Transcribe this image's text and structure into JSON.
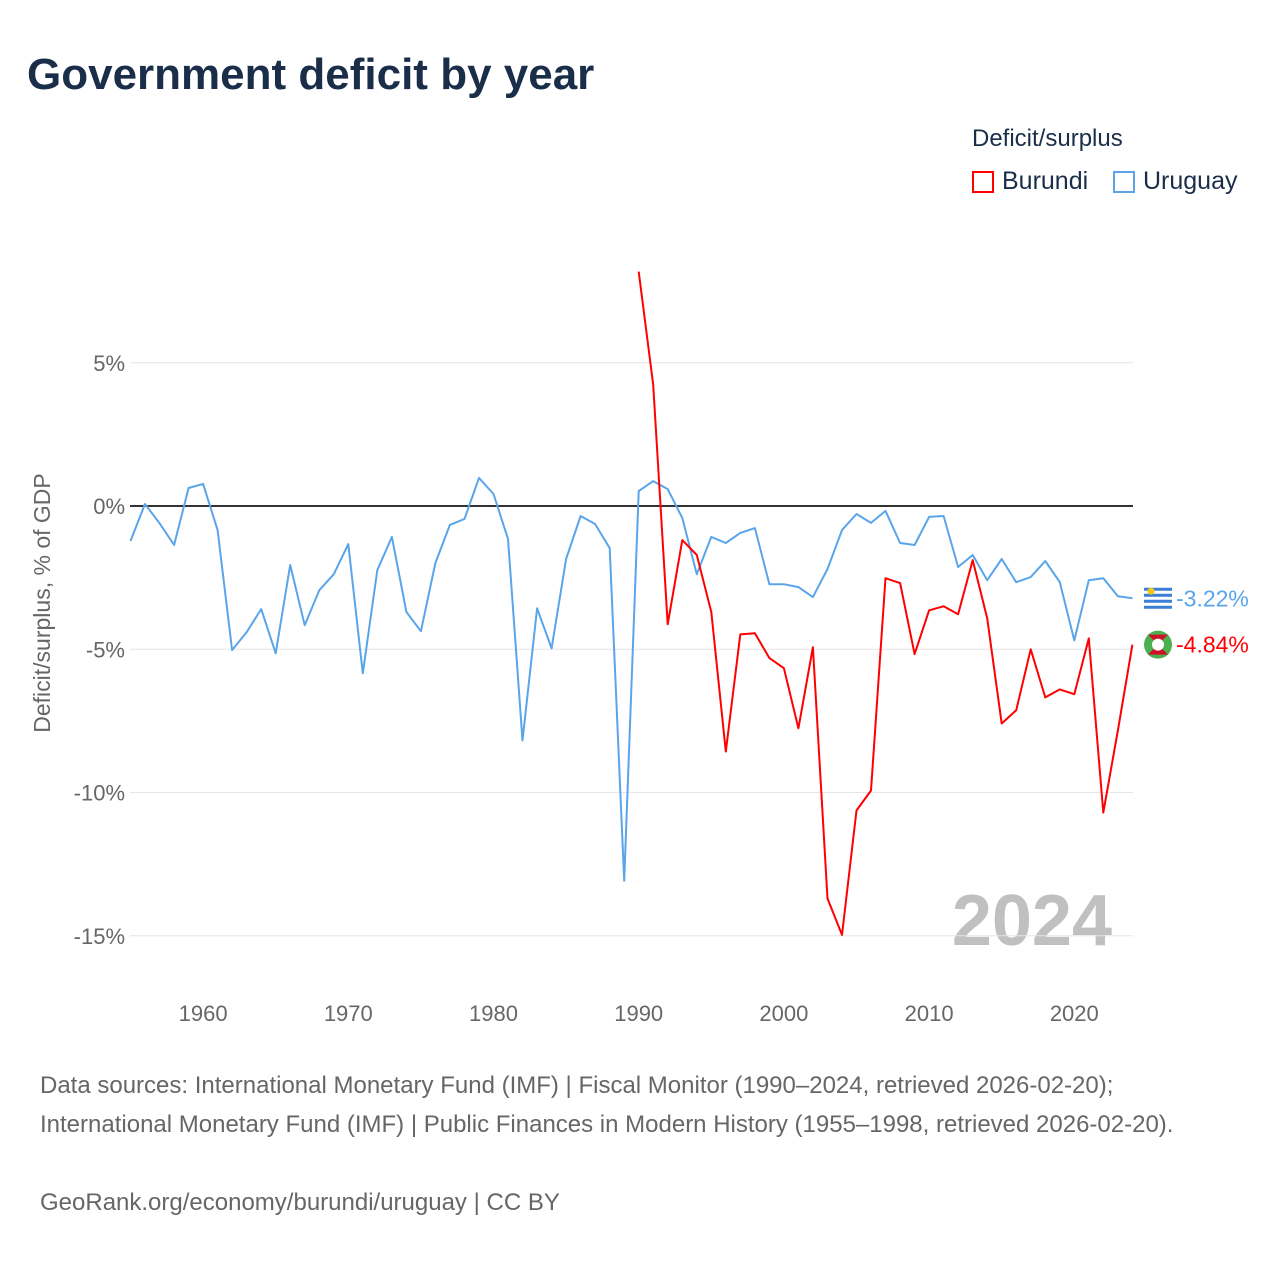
{
  "title": "Government deficit by year",
  "legend": {
    "title": "Deficit/surplus",
    "items": [
      {
        "name": "Burundi",
        "color": "#ff0000"
      },
      {
        "name": "Uruguay",
        "color": "#5aa5ea"
      }
    ]
  },
  "watermark_year": "2024",
  "sources": {
    "line1": "Data sources: International Monetary Fund (IMF) | Fiscal Monitor (1990–2024, retrieved 2026-02-20); International Monetary Fund (IMF) | Public Finances in Modern History (1955–1998, retrieved 2026-02-20).",
    "line2": "GeoRank.org/economy/burundi/uruguay | CC BY"
  },
  "chart_data": {
    "type": "line",
    "title": "Government deficit by year",
    "xlabel": "",
    "ylabel": "Deficit/surplus, % of GDP",
    "xlim": [
      1955,
      2024
    ],
    "ylim": [
      -16.5,
      9
    ],
    "xticks": [
      1960,
      1970,
      1980,
      1990,
      2000,
      2010,
      2020
    ],
    "yticks": [
      {
        "v": 5,
        "label": "5%"
      },
      {
        "v": 0,
        "label": "0%"
      },
      {
        "v": -5,
        "label": "-5%"
      },
      {
        "v": -10,
        "label": "-10%"
      },
      {
        "v": -15,
        "label": "-15%"
      }
    ],
    "grid": true,
    "legend_position": "top-right",
    "series": [
      {
        "name": "Uruguay",
        "color": "#5aa5ea",
        "start": 1955,
        "end_label": "-3.22%",
        "values": [
          -1.22,
          0.07,
          -0.6,
          -1.36,
          0.63,
          0.77,
          -0.84,
          -5.03,
          -4.4,
          -3.6,
          -5.14,
          -2.06,
          -4.16,
          -2.94,
          -2.38,
          -1.33,
          -5.84,
          -2.24,
          -1.08,
          -3.7,
          -4.37,
          -1.99,
          -0.66,
          -0.45,
          0.98,
          0.42,
          -1.15,
          -8.18,
          -3.57,
          -4.97,
          -1.85,
          -0.35,
          -0.63,
          -1.47,
          -13.08,
          0.52,
          0.87,
          0.59,
          -0.42,
          -2.38,
          -1.08,
          -1.29,
          -0.94,
          -0.77,
          -2.73,
          -2.73,
          -2.83,
          -3.18,
          -2.2,
          -0.84,
          -0.28,
          -0.59,
          -0.17,
          -1.29,
          -1.36,
          -0.38,
          -0.35,
          -2.13,
          -1.71,
          -2.59,
          -1.85,
          -2.66,
          -2.48,
          -1.92,
          -2.66,
          -4.69,
          -2.59,
          -2.52,
          -3.15,
          -3.22
        ]
      },
      {
        "name": "Burundi",
        "color": "#ff0000",
        "start": 1990,
        "end_label": "-4.84%",
        "values": [
          8.18,
          4.23,
          -4.13,
          -1.19,
          -1.71,
          -3.7,
          -8.57,
          -4.48,
          -4.44,
          -5.31,
          -5.66,
          -7.76,
          -4.93,
          -13.7,
          -14.97,
          -10.63,
          -9.93,
          -2.52,
          -2.69,
          -5.17,
          -3.64,
          -3.5,
          -3.78,
          -1.89,
          -3.92,
          -7.59,
          -7.13,
          -5.0,
          -6.68,
          -6.4,
          -6.57,
          -4.62,
          -10.7,
          -7.83,
          -4.84
        ]
      }
    ]
  }
}
